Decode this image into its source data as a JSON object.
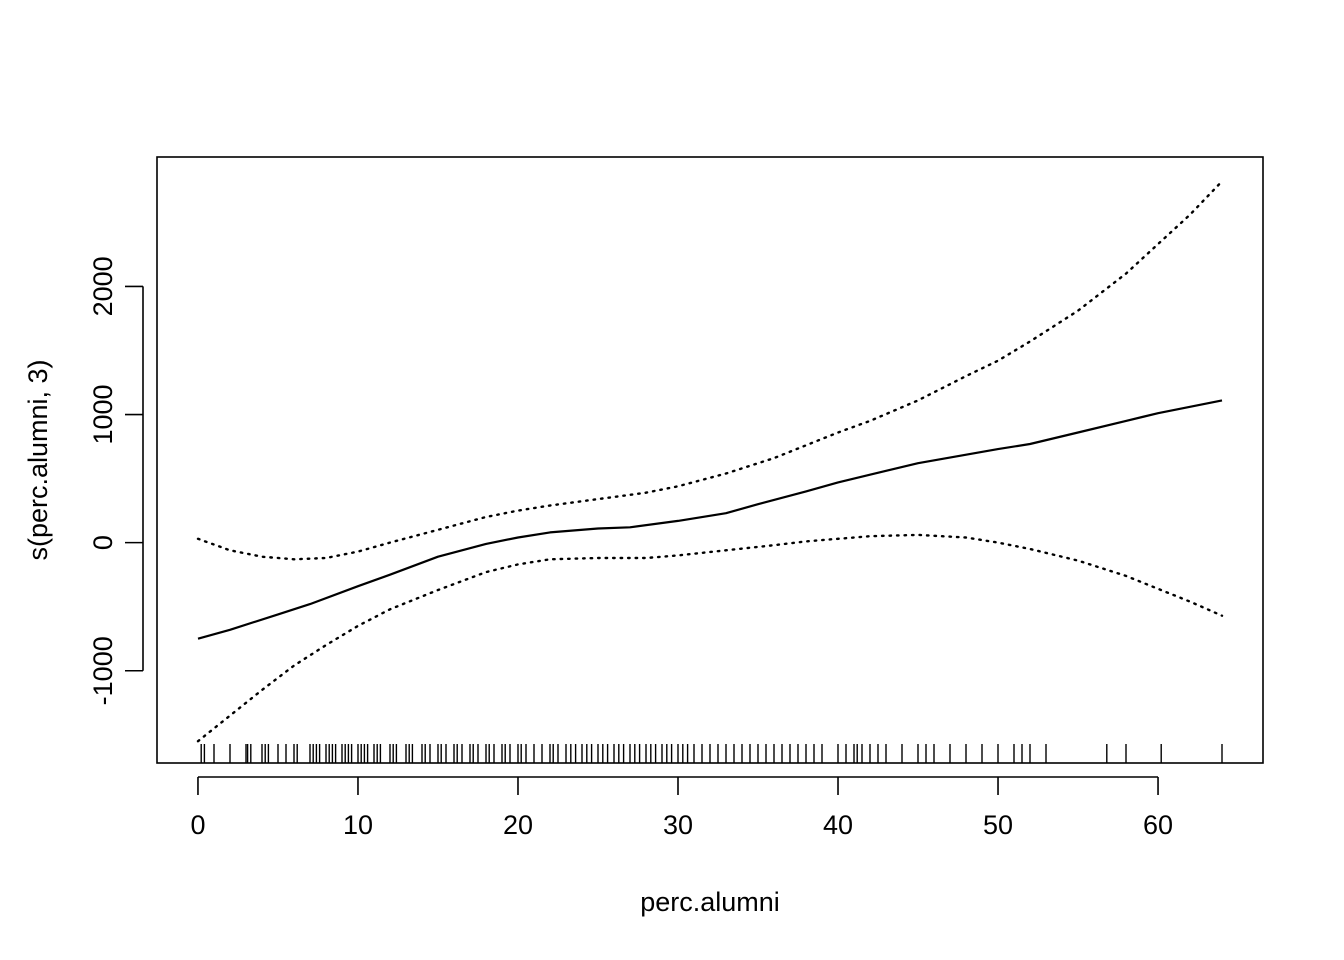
{
  "chart_data": {
    "type": "line",
    "title": "",
    "xlabel": "perc.alumni",
    "ylabel": "s(perc.alumni, 3)",
    "xlim": [
      -2.56,
      66.56
    ],
    "ylim": [
      -1720,
      3010
    ],
    "xticks": [
      0,
      10,
      20,
      30,
      40,
      50,
      60
    ],
    "yticks": [
      -1000,
      0,
      1000,
      2000
    ],
    "grid": false,
    "series": [
      {
        "role": "fit",
        "style": "solid",
        "x": [
          0,
          2,
          5,
          7,
          10,
          12,
          15,
          18,
          20,
          22,
          25,
          27,
          30,
          33,
          35,
          38,
          40,
          42,
          45,
          50,
          52,
          55,
          58,
          60,
          62,
          64
        ],
        "y": [
          -750,
          -680,
          -560,
          -480,
          -340,
          -250,
          -110,
          -10,
          40,
          80,
          110,
          120,
          170,
          230,
          300,
          400,
          470,
          530,
          620,
          730,
          770,
          860,
          950,
          1010,
          1060,
          1110
        ]
      },
      {
        "role": "upper-band",
        "style": "dotted",
        "x": [
          0,
          2,
          4,
          6,
          8,
          10,
          12,
          15,
          18,
          20,
          22,
          25,
          28,
          30,
          33,
          36,
          38,
          40,
          42,
          45,
          48,
          50,
          52,
          55,
          58,
          60,
          62,
          64
        ],
        "y": [
          30,
          -60,
          -110,
          -130,
          -120,
          -70,
          0,
          100,
          200,
          250,
          290,
          340,
          390,
          440,
          540,
          660,
          760,
          860,
          950,
          1110,
          1300,
          1420,
          1570,
          1810,
          2100,
          2330,
          2560,
          2820
        ]
      },
      {
        "role": "lower-band",
        "style": "dotted",
        "x": [
          0,
          2,
          4,
          6,
          8,
          10,
          12,
          15,
          18,
          20,
          22,
          25,
          28,
          30,
          33,
          36,
          38,
          40,
          42,
          45,
          48,
          50,
          52,
          55,
          58,
          60,
          62,
          64
        ],
        "y": [
          -1550,
          -1350,
          -1150,
          -960,
          -800,
          -650,
          -520,
          -370,
          -230,
          -170,
          -130,
          -120,
          -120,
          -100,
          -60,
          -20,
          10,
          30,
          50,
          60,
          40,
          0,
          -50,
          -140,
          -260,
          -360,
          -460,
          -570
        ]
      }
    ],
    "rug": [
      0.2,
      0.4,
      1,
      2,
      3,
      3.1,
      3.3,
      4,
      4.2,
      4.4,
      5,
      5.5,
      6,
      6.2,
      7,
      7.2,
      7.4,
      7.6,
      8,
      8.2,
      8.4,
      8.6,
      9,
      9.2,
      9.4,
      9.6,
      10,
      10.2,
      10.4,
      10.6,
      11,
      11.2,
      11.4,
      12,
      12.2,
      12.4,
      13,
      13.2,
      13.4,
      14,
      14.2,
      14.5,
      15,
      15.2,
      15.5,
      16,
      16.2,
      16.5,
      17,
      17.2,
      17.5,
      18,
      18.2,
      18.5,
      19,
      19.2,
      19.5,
      20,
      20.2,
      20.5,
      21,
      21.5,
      22,
      22.2,
      22.5,
      23,
      23.3,
      23.6,
      24,
      24.3,
      24.6,
      25,
      25.3,
      25.6,
      26,
      26.3,
      26.6,
      27,
      27.3,
      27.6,
      28,
      28.3,
      28.6,
      29,
      29.3,
      29.6,
      30,
      30.3,
      30.6,
      31,
      31.5,
      32,
      32.5,
      33,
      33.5,
      34,
      34.5,
      35,
      35.5,
      36,
      36.5,
      37,
      37.5,
      38,
      38.5,
      39,
      40,
      40.5,
      41,
      41.2,
      41.5,
      42,
      42.5,
      43,
      44,
      45,
      45.5,
      46,
      47,
      48,
      49,
      50,
      51,
      51.5,
      52,
      53,
      56.8,
      58,
      60.2,
      64
    ]
  }
}
